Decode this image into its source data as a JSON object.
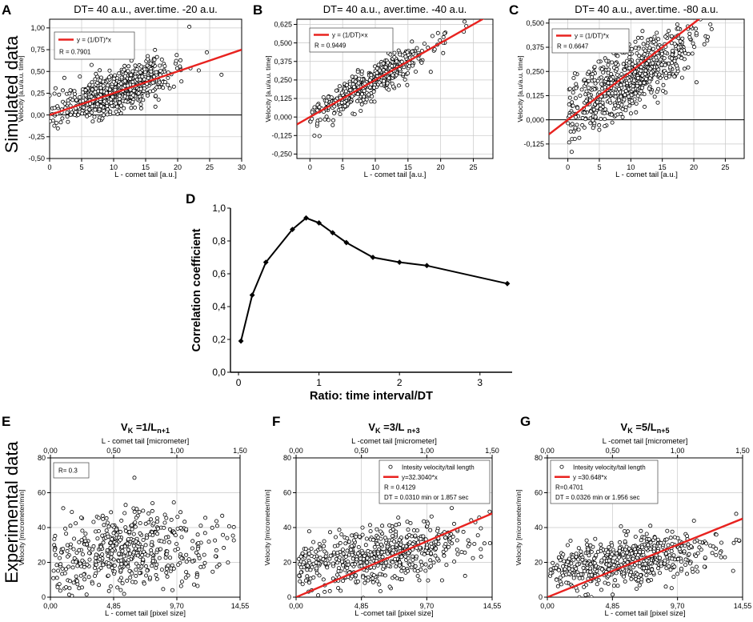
{
  "figure": {
    "row_labels": {
      "top": "Simulated data",
      "bottom": "Experimental data"
    },
    "accent_color": "#e8221f",
    "marker_color": "#000000"
  },
  "chart_data": [
    {
      "id": "A",
      "panel_letter": "A",
      "type": "scatter",
      "title": "DT= 40 a.u., aver.time. -20 a.u.",
      "xlabel": "L - comet tail [a.u.]",
      "ylabel": "Velocity [a.u/a.u. time]",
      "xlim": [
        0,
        30
      ],
      "ylim": [
        -0.5,
        1.1
      ],
      "xticks": [
        0,
        5,
        10,
        15,
        20,
        25,
        30
      ],
      "xtick_labels": [
        "0",
        "5",
        "10",
        "15",
        "20",
        "25",
        "30"
      ],
      "yticks": [
        -0.5,
        -0.25,
        0,
        0.25,
        0.5,
        0.75,
        1.0
      ],
      "ytick_labels": [
        "-0,50",
        "-0,25",
        "0,00",
        "0,25",
        "0,50",
        "0,75",
        "1,00"
      ],
      "zero_line": true,
      "fit": {
        "slope": 0.025,
        "label": "y = (1/DT)*x"
      },
      "legend_lines": [
        "y = (1/DT)*x",
        "R = 0.7901"
      ],
      "scatter": {
        "n": 700,
        "seed": 11,
        "xmean": 10.5,
        "xsd": 4.6,
        "xmin": 0,
        "xmax": 27,
        "slope": 0.025,
        "intercept": 0.02,
        "noise": 0.12
      }
    },
    {
      "id": "B",
      "panel_letter": "B",
      "type": "scatter",
      "title": "DT= 40 a.u., aver.time. -40 a.u.",
      "xlabel": "L - comet tail [a.u.]",
      "ylabel": "Velocity [a.u/a.u. time]",
      "xlim": [
        -2,
        28
      ],
      "ylim": [
        -0.28,
        0.66
      ],
      "xticks": [
        0,
        5,
        10,
        15,
        20,
        25
      ],
      "xtick_labels": [
        "0",
        "5",
        "10",
        "15",
        "20",
        "25"
      ],
      "yticks": [
        -0.25,
        -0.125,
        0,
        0.125,
        0.25,
        0.375,
        0.5,
        0.625
      ],
      "ytick_labels": [
        "-0,250",
        "-0,125",
        "0,000",
        "0,125",
        "0,250",
        "0,375",
        "0,500",
        "0,625"
      ],
      "zero_line": false,
      "fit": {
        "slope": 0.025,
        "label": "y = (1/DT)×x"
      },
      "legend_lines": [
        "y = (1/DT)×x",
        "R = 0.9449"
      ],
      "scatter": {
        "n": 480,
        "seed": 23,
        "xmean": 9.5,
        "xsd": 4.6,
        "xmin": 0,
        "xmax": 24,
        "slope": 0.025,
        "intercept": -0.005,
        "noise": 0.055
      }
    },
    {
      "id": "C",
      "panel_letter": "C",
      "type": "scatter",
      "title": "DT= 40 a.u., aver.time. -80 a.u.",
      "xlabel": "L - comet tail [a.u.]",
      "ylabel": "Velocity [a.u/a.u. time]",
      "xlim": [
        -3,
        28
      ],
      "ylim": [
        -0.2,
        0.52
      ],
      "xticks": [
        0,
        5,
        10,
        15,
        20,
        25
      ],
      "xtick_labels": [
        "0",
        "5",
        "10",
        "15",
        "20",
        "25"
      ],
      "yticks": [
        -0.125,
        0,
        0.125,
        0.25,
        0.375,
        0.5
      ],
      "ytick_labels": [
        "-0,125",
        "0,000",
        "0,125",
        "0,250",
        "0,375",
        "0,500"
      ],
      "zero_line": true,
      "fit": {
        "slope": 0.025,
        "label": "y = (1/DT)*x"
      },
      "legend_lines": [
        "y = (1/DT)*x",
        "R = 0.6647"
      ],
      "scatter": {
        "n": 720,
        "seed": 37,
        "xmean": 9.5,
        "xsd": 4.8,
        "xmin": 0,
        "xmax": 27,
        "slope": 0.019,
        "intercept": 0.03,
        "noise": 0.085
      }
    },
    {
      "id": "D",
      "panel_letter": "D",
      "type": "line",
      "title": "",
      "xlabel": "Ratio: time interval/DT",
      "ylabel": "Correlation coefficient",
      "xlim": [
        -0.1,
        3.4
      ],
      "ylim": [
        0,
        1.0
      ],
      "xticks": [
        0,
        1,
        2,
        3
      ],
      "xtick_labels": [
        "0",
        "1",
        "2",
        "3"
      ],
      "yticks": [
        0,
        0.2,
        0.4,
        0.6,
        0.8,
        1.0
      ],
      "ytick_labels": [
        "0,0",
        "0,2",
        "0,4",
        "0,6",
        "0,8",
        "1,0"
      ],
      "x": [
        0.03,
        0.17,
        0.34,
        0.67,
        0.84,
        1.0,
        1.17,
        1.34,
        1.67,
        2.0,
        2.34,
        3.34
      ],
      "y": [
        0.19,
        0.47,
        0.67,
        0.87,
        0.94,
        0.91,
        0.85,
        0.79,
        0.7,
        0.67,
        0.65,
        0.54
      ]
    },
    {
      "id": "E",
      "panel_letter": "E",
      "type": "scatter",
      "title_parts": {
        "main": "V",
        "sub1": "K",
        "mid": " =1/L",
        "sub2": "n+1"
      },
      "top_axis_label": "L - comet tail [micrometer]",
      "top_ticks": [
        0,
        0.5,
        1.0,
        1.5
      ],
      "top_tick_labels": [
        "0,00",
        "0,50",
        "1,00",
        "1,50"
      ],
      "top_xlim": [
        0,
        1.5
      ],
      "xlabel": "L - comet tail [pixel size]",
      "ylabel": "Velocity [micrometer/min]",
      "xlim": [
        0,
        14.55
      ],
      "ylim": [
        0,
        80
      ],
      "xticks": [
        0,
        4.85,
        9.7,
        14.55
      ],
      "xtick_labels": [
        "0,00",
        "4,85",
        "9,70",
        "14,55"
      ],
      "yticks": [
        0,
        20,
        40,
        60,
        80
      ],
      "ytick_labels": [
        "0",
        "20",
        "40",
        "60",
        "80"
      ],
      "zero_line": false,
      "fit": null,
      "legend_lines": [
        "R= 0.3"
      ],
      "scatter": {
        "n": 520,
        "seed": 51,
        "xmean": 6.0,
        "xsd": 3.4,
        "xmin": 0.2,
        "xmax": 14.5,
        "slope": 0.9,
        "intercept": 21,
        "noise": 12
      }
    },
    {
      "id": "F",
      "panel_letter": "F",
      "type": "scatter",
      "title_parts": {
        "main": "V",
        "sub1": "K",
        "mid": " =3/L ",
        "sub2": "n+3"
      },
      "top_axis_label": "L -comet tail [micrometer]",
      "top_ticks": [
        0,
        0.5,
        1.0,
        1.5
      ],
      "top_tick_labels": [
        "0,00",
        "0,50",
        "1,00",
        "1,50"
      ],
      "top_xlim": [
        0,
        1.5
      ],
      "xlabel": "L -comet tail [pixel size]",
      "ylabel": "Velocity [micrometer/min]",
      "xlim": [
        0,
        14.55
      ],
      "ylim": [
        0,
        80
      ],
      "xticks": [
        0,
        4.85,
        9.7,
        14.55
      ],
      "xtick_labels": [
        "0,00",
        "4,85",
        "9,70",
        "14,55"
      ],
      "yticks": [
        0,
        20,
        40,
        60,
        80
      ],
      "ytick_labels": [
        "0",
        "20",
        "40",
        "60",
        "80"
      ],
      "zero_line": false,
      "fit": {
        "slope": 3.304,
        "label": "y=32.3040*x"
      },
      "legend_lines": [
        "Intesity velocity/tail length",
        "y=32.3040*x",
        "R = 0.4129",
        "DT = 0.0310 min or 1.857 sec"
      ],
      "scatter": {
        "n": 560,
        "seed": 67,
        "xmean": 6.0,
        "xsd": 3.3,
        "xmin": 0.2,
        "xmax": 14.5,
        "slope": 1.1,
        "intercept": 17,
        "noise": 8
      }
    },
    {
      "id": "G",
      "panel_letter": "G",
      "type": "scatter",
      "title_parts": {
        "main": "V",
        "sub1": "K",
        "mid": " =5/L",
        "sub2": "n+5"
      },
      "top_axis_label": "L -comet tail [micrometer]",
      "top_ticks": [
        0,
        0.5,
        1.0,
        1.5
      ],
      "top_tick_labels": [
        "0,00",
        "0,50",
        "1,00",
        "1,50"
      ],
      "top_xlim": [
        0,
        1.5
      ],
      "xlabel": "L - comet tail [pixel size]",
      "ylabel": "Velocity [micrometer/min]",
      "xlim": [
        0,
        14.55
      ],
      "ylim": [
        0,
        80
      ],
      "xticks": [
        0,
        4.85,
        9.7,
        14.55
      ],
      "xtick_labels": [
        "0,00",
        "4,85",
        "9,70",
        "14,55"
      ],
      "yticks": [
        0,
        20,
        40,
        60,
        80
      ],
      "ytick_labels": [
        "0",
        "20",
        "40",
        "60",
        "80"
      ],
      "zero_line": false,
      "fit": {
        "slope": 3.1,
        "label": "y =30.648*x"
      },
      "legend_lines": [
        "Intesity velocity/tail length",
        "y =30.648*x",
        "R=0.4701",
        "DT = 0.0326 min or 1.956 sec"
      ],
      "scatter": {
        "n": 560,
        "seed": 83,
        "xmean": 6.0,
        "xsd": 3.3,
        "xmin": 0.2,
        "xmax": 14.5,
        "slope": 1.15,
        "intercept": 14,
        "noise": 7
      }
    }
  ]
}
